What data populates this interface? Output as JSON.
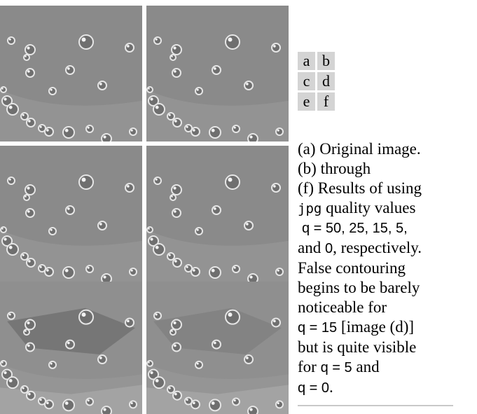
{
  "panels": [
    {
      "id": "a",
      "variant": "original"
    },
    {
      "id": "b",
      "variant": "q50"
    },
    {
      "id": "c",
      "variant": "q25"
    },
    {
      "id": "d",
      "variant": "q15"
    },
    {
      "id": "e",
      "variant": "q5"
    },
    {
      "id": "f",
      "variant": "q0"
    }
  ],
  "key": [
    "a",
    "b",
    "c",
    "d",
    "e",
    "f"
  ],
  "caption": {
    "l1": "(a) Original image.",
    "l2": "(b) through",
    "l3": "(f) Results of using",
    "l4a": "jpg",
    "l4b": " quality values",
    "l5": "q = 50, 25, 15, 5,",
    "l6a": "and ",
    "l6b": "0",
    "l6c": ", respectively.",
    "l7": "False contouring",
    "l8": "begins to be barely",
    "l9": "noticeable for",
    "l10a": "q = 15",
    "l10b": " [image (d)]",
    "l11": "but is quite visible",
    "l12a": "for ",
    "l12b": "q = 5",
    "l12c": " and",
    "l13": "q = 0",
    "l13b": "."
  },
  "colors": {
    "background": "#8a8a8a",
    "bubble_rim": "#e6e6e6",
    "contour_dark": "#707070",
    "contour_light": "#a6a6a6"
  }
}
